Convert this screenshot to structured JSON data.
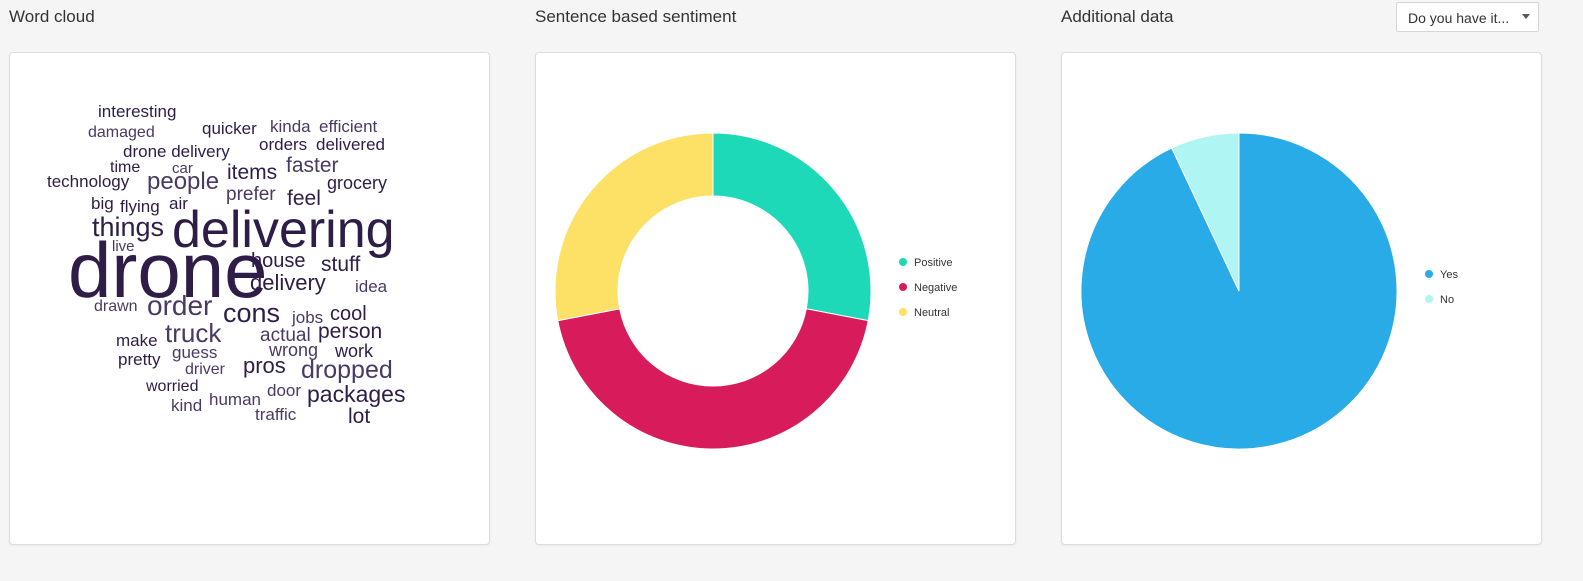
{
  "sections": {
    "word_cloud_title": "Word cloud",
    "sentiment_title": "Sentence based sentiment",
    "additional_title": "Additional data"
  },
  "dropdown": {
    "selected": "Do you have it..."
  },
  "colors": {
    "positive": "#1ed9b8",
    "negative": "#d81b5a",
    "neutral": "#fde066",
    "yes": "#29abe8",
    "no": "#aef5f3",
    "word_dark": "#2e1d47",
    "word_mid": "#4a3a63"
  },
  "chart_data": [
    {
      "type": "wordcloud",
      "words": [
        {
          "text": "drone",
          "weight": 100
        },
        {
          "text": "delivering",
          "weight": 80
        },
        {
          "text": "things",
          "weight": 40
        },
        {
          "text": "order",
          "weight": 38
        },
        {
          "text": "cons",
          "weight": 38
        },
        {
          "text": "truck",
          "weight": 34
        },
        {
          "text": "people",
          "weight": 32
        },
        {
          "text": "dropped",
          "weight": 32
        },
        {
          "text": "packages",
          "weight": 30
        },
        {
          "text": "delivery",
          "weight": 28
        },
        {
          "text": "items",
          "weight": 26
        },
        {
          "text": "faster",
          "weight": 26
        },
        {
          "text": "house",
          "weight": 24
        },
        {
          "text": "stuff",
          "weight": 26
        },
        {
          "text": "pros",
          "weight": 26
        },
        {
          "text": "person",
          "weight": 24
        },
        {
          "text": "lot",
          "weight": 24
        },
        {
          "text": "feel",
          "weight": 22
        },
        {
          "text": "prefer",
          "weight": 20
        },
        {
          "text": "cool",
          "weight": 22
        },
        {
          "text": "drone delivery",
          "weight": 20
        },
        {
          "text": "interesting",
          "weight": 18
        },
        {
          "text": "quicker",
          "weight": 18
        },
        {
          "text": "kinda",
          "weight": 18
        },
        {
          "text": "efficient",
          "weight": 18
        },
        {
          "text": "damaged",
          "weight": 18
        },
        {
          "text": "orders",
          "weight": 18
        },
        {
          "text": "delivered",
          "weight": 18
        },
        {
          "text": "time",
          "weight": 18
        },
        {
          "text": "car",
          "weight": 16
        },
        {
          "text": "grocery",
          "weight": 18
        },
        {
          "text": "technology",
          "weight": 18
        },
        {
          "text": "big",
          "weight": 18
        },
        {
          "text": "flying",
          "weight": 18
        },
        {
          "text": "air",
          "weight": 18
        },
        {
          "text": "live",
          "weight": 16
        },
        {
          "text": "idea",
          "weight": 18
        },
        {
          "text": "drawn",
          "weight": 16
        },
        {
          "text": "jobs",
          "weight": 18
        },
        {
          "text": "actual",
          "weight": 20
        },
        {
          "text": "make",
          "weight": 18
        },
        {
          "text": "guess",
          "weight": 18
        },
        {
          "text": "wrong",
          "weight": 20
        },
        {
          "text": "work",
          "weight": 20
        },
        {
          "text": "pretty",
          "weight": 18
        },
        {
          "text": "driver",
          "weight": 16
        },
        {
          "text": "worried",
          "weight": 18
        },
        {
          "text": "door",
          "weight": 18
        },
        {
          "text": "human",
          "weight": 18
        },
        {
          "text": "kind",
          "weight": 18
        },
        {
          "text": "traffic",
          "weight": 18
        }
      ]
    },
    {
      "type": "pie",
      "variant": "donut",
      "categories": [
        "Positive",
        "Negative",
        "Neutral"
      ],
      "values": [
        28,
        44,
        28
      ],
      "legend": "right"
    },
    {
      "type": "pie",
      "categories": [
        "Yes",
        "No"
      ],
      "values": [
        93,
        7
      ],
      "legend": "right"
    }
  ]
}
